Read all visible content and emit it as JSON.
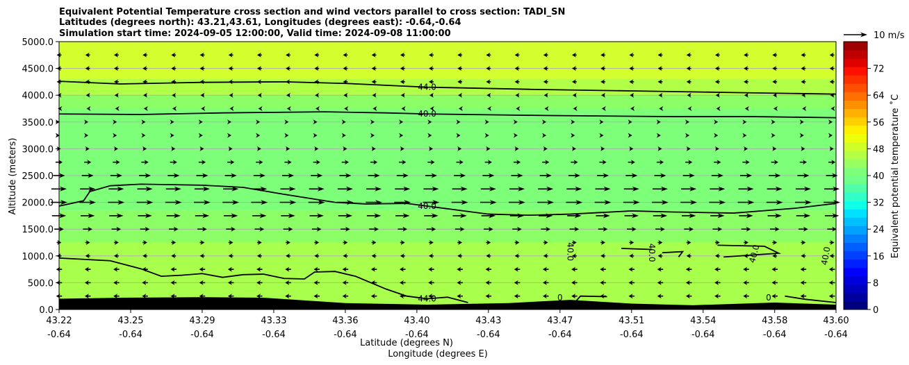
{
  "chart_data": {
    "type": "contour",
    "title_lines": [
      "Equivalent Potential Temperature cross section and wind vectors parallel to cross section: TADI_SN",
      "Latitudes (degrees north): 43.21,43.61, Longitudes (degrees east): -0.64,-0.64",
      "Simulation start time: 2024-09-05 12:00:00, Valid time: 2024-09-08 11:00:00"
    ],
    "xlabel": "Latitude (degrees N)",
    "xlabel2": "Longitude (degrees E)",
    "ylabel": "Altitude (meters)",
    "xlim": [
      43.22,
      43.6
    ],
    "ylim": [
      0,
      5000
    ],
    "x_ticks": [
      {
        "lat": "43.22",
        "lon": "-0.64",
        "value": 43.22
      },
      {
        "lat": "43.25",
        "lon": "-0.64",
        "value": 43.255
      },
      {
        "lat": "43.29",
        "lon": "-0.64",
        "value": 43.29
      },
      {
        "lat": "43.33",
        "lon": "-0.64",
        "value": 43.325
      },
      {
        "lat": "43.36",
        "lon": "-0.64",
        "value": 43.36
      },
      {
        "lat": "43.40",
        "lon": "-0.64",
        "value": 43.395
      },
      {
        "lat": "43.43",
        "lon": "-0.64",
        "value": 43.43
      },
      {
        "lat": "43.47",
        "lon": "-0.64",
        "value": 43.465
      },
      {
        "lat": "43.51",
        "lon": "-0.64",
        "value": 43.5
      },
      {
        "lat": "43.54",
        "lon": "-0.64",
        "value": 43.535
      },
      {
        "lat": "43.58",
        "lon": "-0.64",
        "value": 43.57
      },
      {
        "lat": "43.60",
        "lon": "-0.64",
        "value": 43.6
      }
    ],
    "y_ticks": [
      {
        "label": "0.0",
        "value": 0
      },
      {
        "label": "500.0",
        "value": 500
      },
      {
        "label": "1000.0",
        "value": 1000
      },
      {
        "label": "1500.0",
        "value": 1500
      },
      {
        "label": "2000.0",
        "value": 2000
      },
      {
        "label": "2500.0",
        "value": 2500
      },
      {
        "label": "3000.0",
        "value": 3000
      },
      {
        "label": "3500.0",
        "value": 3500
      },
      {
        "label": "4000.0",
        "value": 4000
      },
      {
        "label": "4500.0",
        "value": 4500
      },
      {
        "label": "5000.0",
        "value": 5000
      }
    ],
    "grid": "horizontal",
    "fill_bands": [
      {
        "y0": 0,
        "y1": 1250,
        "color": "#a8ff4c"
      },
      {
        "y0": 1250,
        "y1": 1850,
        "color": "#8cff66"
      },
      {
        "y0": 1850,
        "y1": 3750,
        "color": "#7dff7a"
      },
      {
        "y0": 3750,
        "y1": 4000,
        "color": "#8cff66"
      },
      {
        "y0": 4000,
        "y1": 4300,
        "color": "#b2ff47"
      },
      {
        "y0": 4300,
        "y1": 5000,
        "color": "#d4ff2e"
      }
    ],
    "terrain": [
      [
        43.22,
        200
      ],
      [
        43.25,
        220
      ],
      [
        43.29,
        230
      ],
      [
        43.32,
        220
      ],
      [
        43.36,
        120
      ],
      [
        43.4,
        90
      ],
      [
        43.44,
        120
      ],
      [
        43.47,
        180
      ],
      [
        43.5,
        110
      ],
      [
        43.53,
        80
      ],
      [
        43.57,
        130
      ],
      [
        43.6,
        90
      ]
    ],
    "contours": [
      {
        "label": "44.0",
        "label_at": [
          43.4,
          4150
        ],
        "points": [
          [
            43.22,
            4260
          ],
          [
            43.25,
            4210
          ],
          [
            43.29,
            4240
          ],
          [
            43.33,
            4250
          ],
          [
            43.36,
            4220
          ],
          [
            43.4,
            4150
          ],
          [
            43.45,
            4110
          ],
          [
            43.5,
            4080
          ],
          [
            43.55,
            4050
          ],
          [
            43.6,
            4020
          ]
        ]
      },
      {
        "label": "40.0",
        "label_at": [
          43.4,
          3650
        ],
        "points": [
          [
            43.22,
            3650
          ],
          [
            43.26,
            3640
          ],
          [
            43.3,
            3670
          ],
          [
            43.35,
            3690
          ],
          [
            43.38,
            3670
          ],
          [
            43.4,
            3650
          ],
          [
            43.46,
            3620
          ],
          [
            43.52,
            3600
          ],
          [
            43.56,
            3600
          ],
          [
            43.6,
            3580
          ]
        ]
      },
      {
        "label": "40.0",
        "label_at": [
          43.4,
          1930
        ],
        "points": [
          [
            43.22,
            1930
          ],
          [
            43.232,
            2030
          ],
          [
            43.235,
            2200
          ],
          [
            43.245,
            2310
          ],
          [
            43.26,
            2340
          ],
          [
            43.29,
            2320
          ],
          [
            43.31,
            2280
          ],
          [
            43.33,
            2150
          ],
          [
            43.355,
            2000
          ],
          [
            43.37,
            1970
          ],
          [
            43.39,
            1980
          ],
          [
            43.4,
            1930
          ],
          [
            43.43,
            1780
          ],
          [
            43.45,
            1760
          ],
          [
            43.47,
            1780
          ],
          [
            43.5,
            1840
          ],
          [
            43.52,
            1820
          ],
          [
            43.55,
            1800
          ],
          [
            43.58,
            1890
          ],
          [
            43.6,
            1980
          ]
        ]
      },
      {
        "label": "44.0",
        "label_at": [
          43.4,
          200
        ],
        "points": [
          [
            43.22,
            960
          ],
          [
            43.245,
            910
          ],
          [
            43.26,
            760
          ],
          [
            43.27,
            620
          ],
          [
            43.28,
            640
          ],
          [
            43.29,
            670
          ],
          [
            43.3,
            600
          ],
          [
            43.31,
            650
          ],
          [
            43.32,
            660
          ],
          [
            43.33,
            580
          ],
          [
            43.34,
            570
          ],
          [
            43.345,
            700
          ],
          [
            43.355,
            710
          ],
          [
            43.365,
            620
          ],
          [
            43.38,
            380
          ],
          [
            43.39,
            250
          ],
          [
            43.4,
            200
          ],
          [
            43.41,
            230
          ],
          [
            43.42,
            130
          ]
        ]
      },
      {
        "label": "0",
        "label_at": [
          43.465,
          220
        ],
        "points": [
          [
            43.472,
            120
          ],
          [
            43.475,
            250
          ],
          [
            43.488,
            240
          ]
        ]
      },
      {
        "label": "0",
        "label_at": [
          43.567,
          220
        ],
        "points": [
          [
            43.575,
            250
          ],
          [
            43.585,
            190
          ],
          [
            43.6,
            130
          ]
        ]
      },
      {
        "label": "",
        "points": [
          [
            43.542,
            1200
          ],
          [
            43.565,
            1180
          ],
          [
            43.572,
            1050
          ],
          [
            43.545,
            980
          ]
        ]
      },
      {
        "label": "",
        "points": [
          [
            43.495,
            1140
          ],
          [
            43.51,
            1120
          ]
        ]
      },
      {
        "label": "",
        "points": [
          [
            43.515,
            1060
          ],
          [
            43.525,
            1080
          ],
          [
            43.523,
            980
          ]
        ]
      }
    ],
    "rotated_labels": [
      {
        "label": "40.0",
        "at": [
          43.47,
          1080
        ],
        "angle": 90
      },
      {
        "label": "40.0",
        "at": [
          43.51,
          1060
        ],
        "angle": 90
      },
      {
        "label": "40.0",
        "at": [
          43.56,
          1040
        ],
        "angle": -75
      },
      {
        "label": "40.0",
        "at": [
          43.595,
          1000
        ],
        "angle": -80
      }
    ],
    "wind_quiver": {
      "levels": [
        {
          "y": 250,
          "u": -2.5
        },
        {
          "y": 500,
          "u": -2.5
        },
        {
          "y": 750,
          "u": -2.5
        },
        {
          "y": 1000,
          "u": -2
        },
        {
          "y": 1250,
          "u": 2
        },
        {
          "y": 1500,
          "u": 4
        },
        {
          "y": 1750,
          "u": 6
        },
        {
          "y": 2000,
          "u": 7
        },
        {
          "y": 2250,
          "u": 6.5
        },
        {
          "y": 2500,
          "u": 5
        },
        {
          "y": 2750,
          "u": 3
        },
        {
          "y": 3000,
          "u": 1.5
        },
        {
          "y": 3250,
          "u": 0.5
        },
        {
          "y": 3500,
          "u": 0.5
        },
        {
          "y": 3750,
          "u": -1
        },
        {
          "y": 4000,
          "u": -1.5
        },
        {
          "y": 4250,
          "u": -2
        },
        {
          "y": 4500,
          "u": -2
        },
        {
          "y": 4750,
          "u": -2
        }
      ],
      "x_positions": [
        43.22,
        43.234,
        43.248,
        43.262,
        43.276,
        43.29,
        43.304,
        43.318,
        43.332,
        43.346,
        43.36,
        43.374,
        43.388,
        43.402,
        43.416,
        43.43,
        43.444,
        43.458,
        43.472,
        43.486,
        43.5,
        43.514,
        43.528,
        43.542,
        43.556,
        43.57,
        43.584,
        43.598
      ],
      "key_label": "10 m/s",
      "key_u": 10
    },
    "colorbar": {
      "label": "Equivalent potential temperature ˚C",
      "vmin": 0,
      "vmax": 80,
      "ticks": [
        {
          "label": "0",
          "value": 0
        },
        {
          "label": "8",
          "value": 8
        },
        {
          "label": "16",
          "value": 16
        },
        {
          "label": "24",
          "value": 24
        },
        {
          "label": "32",
          "value": 32
        },
        {
          "label": "40",
          "value": 40
        },
        {
          "label": "48",
          "value": 48
        },
        {
          "label": "56",
          "value": 56
        },
        {
          "label": "64",
          "value": 64
        },
        {
          "label": "72",
          "value": 72
        }
      ],
      "colors": [
        "#00007f",
        "#00009f",
        "#0000bf",
        "#0000df",
        "#0000ff",
        "#0020ff",
        "#0040ff",
        "#0060ff",
        "#0080ff",
        "#00a0ff",
        "#00c0ff",
        "#00e0ff",
        "#10ffe8",
        "#30ffc8",
        "#50ffa8",
        "#70ff88",
        "#7dff7a",
        "#98ff60",
        "#b4ff43",
        "#d0ff27",
        "#ecff0b",
        "#fff000",
        "#ffd000",
        "#ffb000",
        "#ff9000",
        "#ff7000",
        "#ff5000",
        "#ff3000",
        "#ff1000",
        "#e00000",
        "#c00000",
        "#a00000"
      ]
    }
  }
}
